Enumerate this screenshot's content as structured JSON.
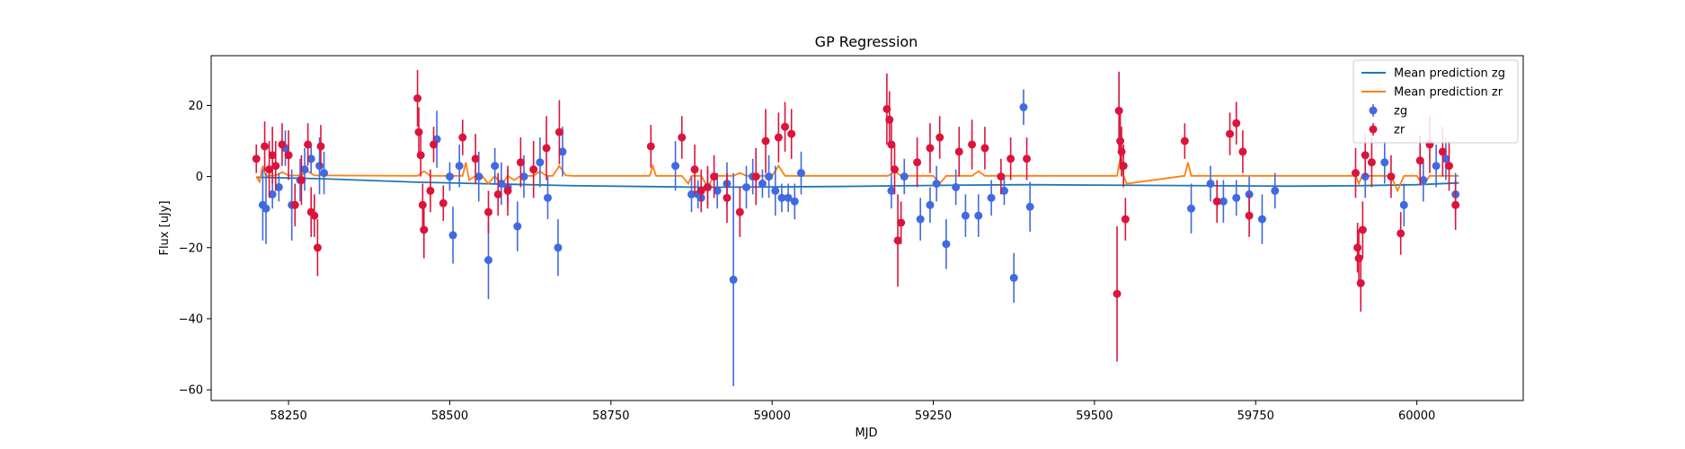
{
  "chart_data": {
    "type": "scatter",
    "title": "GP Regression",
    "xlabel": "MJD",
    "ylabel": "Flux [uJy]",
    "xlim": [
      58130,
      60165
    ],
    "ylim": [
      -63,
      34
    ],
    "xticks": [
      58250,
      58500,
      58750,
      59000,
      59250,
      59500,
      59750,
      60000
    ],
    "yticks": [
      -60,
      -40,
      -20,
      0,
      20
    ],
    "grid": false,
    "legend_position": "top-right",
    "legend": [
      {
        "label": "Mean prediction zg",
        "kind": "line",
        "color": "#1f77b4"
      },
      {
        "label": "Mean prediction zr",
        "kind": "line",
        "color": "#ff7f0e"
      },
      {
        "label": "zg",
        "kind": "errorbar",
        "color": "#4169e1"
      },
      {
        "label": "zr",
        "kind": "errorbar",
        "color": "#dc143c"
      }
    ],
    "lines": [
      {
        "name": "Mean prediction zg",
        "color": "#1f77b4",
        "x": [
          58200,
          58300,
          58450,
          58600,
          58700,
          58800,
          58900,
          59000,
          59100,
          59200,
          59300,
          59400,
          59500,
          59600,
          59700,
          59800,
          59900,
          60000,
          60065
        ],
        "y": [
          -0.2,
          -0.6,
          -1.6,
          -2.2,
          -2.6,
          -2.8,
          -3.0,
          -2.9,
          -2.8,
          -2.6,
          -2.4,
          -2.3,
          -2.4,
          -2.5,
          -2.6,
          -2.7,
          -2.6,
          -2.3,
          -1.8
        ]
      },
      {
        "name": "Mean prediction zr",
        "color": "#ff7f0e",
        "x": [
          58200,
          58205,
          58210,
          58215,
          58220,
          58230,
          58240,
          58250,
          58260,
          58270,
          58280,
          58290,
          58300,
          58310,
          58450,
          58460,
          58470,
          58480,
          58490,
          58500,
          58510,
          58520,
          58525,
          58530,
          58540,
          58550,
          58560,
          58570,
          58580,
          58590,
          58600,
          58610,
          58620,
          58630,
          58640,
          58650,
          58660,
          58670,
          58680,
          58690,
          58810,
          58815,
          58820,
          58860,
          58870,
          58875,
          58880,
          58890,
          58900,
          58910,
          58920,
          58930,
          58940,
          58950,
          58960,
          58970,
          58980,
          58990,
          59000,
          59010,
          59020,
          59030,
          59040,
          59180,
          59190,
          59200,
          59210,
          59220,
          59230,
          59240,
          59250,
          59260,
          59270,
          59280,
          59290,
          59300,
          59310,
          59320,
          59330,
          59340,
          59350,
          59360,
          59370,
          59380,
          59390,
          59400,
          59405,
          59535,
          59540,
          59545,
          59550,
          59640,
          59645,
          59650,
          59660,
          59670,
          59680,
          59690,
          59700,
          59710,
          59720,
          59730,
          59740,
          59750,
          59760,
          59770,
          59905,
          59910,
          59915,
          59920,
          59930,
          59940,
          59960,
          59970,
          59980,
          60000,
          60010,
          60020,
          60030,
          60040,
          60050,
          60065
        ],
        "y": [
          0,
          -1.5,
          3,
          0,
          0.3,
          0.3,
          1.2,
          0.3,
          0.3,
          0.3,
          1.5,
          0.3,
          0.3,
          0.3,
          0.2,
          1.5,
          0.2,
          0.2,
          0.2,
          0.2,
          0.2,
          0.2,
          4,
          -1,
          0.2,
          0.2,
          -2,
          0.2,
          -2.5,
          0.2,
          -1,
          0.2,
          0.2,
          0.2,
          1.5,
          0.2,
          0.2,
          3,
          0.3,
          0.2,
          0.2,
          3,
          0.2,
          0.2,
          -2,
          0.2,
          0.2,
          0.2,
          -3,
          0.2,
          0.2,
          0.2,
          0.2,
          1,
          0.2,
          0.2,
          0.2,
          0.2,
          0.2,
          3,
          0.2,
          0.2,
          0.2,
          0.2,
          1.5,
          0.2,
          0.2,
          0.2,
          0.2,
          0.2,
          0.2,
          -2,
          0.2,
          0.2,
          0.2,
          0.2,
          0.2,
          1.5,
          0.2,
          0.2,
          0.2,
          0.2,
          0.2,
          0.2,
          0.2,
          0.2,
          0.2,
          0.2,
          5,
          0.2,
          -2,
          0.2,
          4,
          0.2,
          0.2,
          0.2,
          0.2,
          0.2,
          0.2,
          0.2,
          0.2,
          0.2,
          0.2,
          0.2,
          0.2,
          0.2,
          0.2,
          -2,
          0.2,
          0.2,
          0.2,
          0.2,
          0.2,
          -4,
          0.2,
          0.2,
          -2.5,
          0.2,
          0.2,
          0.2,
          0.2,
          0.2
        ]
      }
    ],
    "series": [
      {
        "name": "zg",
        "color": "#4169e1",
        "x": [
          58210,
          58215,
          58225,
          58235,
          58245,
          58255,
          58268,
          58275,
          58285,
          58298,
          58305,
          58480,
          58500,
          58505,
          58515,
          58545,
          58560,
          58570,
          58580,
          58590,
          58605,
          58615,
          58640,
          58652,
          58668,
          58675,
          58850,
          58875,
          58885,
          58890,
          58900,
          58915,
          58930,
          58940,
          58960,
          58970,
          58985,
          58995,
          59005,
          59015,
          59025,
          59035,
          59045,
          59185,
          59205,
          59230,
          59245,
          59255,
          59270,
          59285,
          59300,
          59320,
          59340,
          59360,
          59375,
          59390,
          59400,
          59650,
          59680,
          59700,
          59720,
          59740,
          59760,
          59780,
          59920,
          59950,
          59980,
          60010,
          60030,
          60045,
          60060
        ],
        "y": [
          -8,
          -9,
          -5,
          -3,
          8,
          -8,
          -1,
          2,
          5,
          3,
          1,
          10.5,
          0,
          -16.5,
          3,
          0,
          -23.5,
          3,
          -2,
          -3,
          -14,
          0,
          4,
          -6,
          -20,
          7,
          3,
          -5,
          -5,
          -6,
          -3,
          -4,
          -2,
          -29,
          -3,
          0,
          -2,
          0,
          -4,
          -6,
          -6,
          -7,
          1,
          -4,
          0,
          -12,
          -8,
          -2,
          -19,
          -3,
          -11,
          -11,
          -6,
          -4,
          -28.5,
          19.5,
          -8.5,
          -9,
          -2,
          -7,
          -6,
          -5,
          -12,
          -4,
          0,
          4,
          -8,
          -1,
          3,
          5,
          -5
        ],
        "err": [
          10,
          10,
          4,
          4,
          5,
          10,
          6,
          6,
          4,
          8,
          6,
          8,
          4,
          8,
          6,
          7,
          11,
          5,
          6,
          5,
          7,
          6,
          7,
          6,
          8,
          7,
          7,
          5,
          4,
          4,
          5,
          5,
          6,
          30,
          6,
          5,
          4,
          6,
          7,
          4,
          4,
          5,
          6,
          5,
          5,
          6,
          5,
          5,
          7,
          5,
          6,
          6,
          5,
          4,
          7,
          5,
          7,
          7,
          5,
          6,
          5,
          5,
          7,
          5,
          6,
          6,
          6,
          6,
          6,
          6,
          6
        ]
      },
      {
        "name": "zr",
        "color": "#dc143c",
        "x": [
          58200,
          58213,
          58220,
          58225,
          58230,
          58240,
          58250,
          58260,
          58270,
          58280,
          58285,
          58290,
          58295,
          58300,
          58450,
          58452,
          58455,
          58458,
          58460,
          58470,
          58475,
          58490,
          58520,
          58540,
          58560,
          58575,
          58590,
          58610,
          58630,
          58650,
          58670,
          58812,
          58860,
          58880,
          58890,
          58900,
          58910,
          58930,
          58950,
          58975,
          58990,
          59010,
          59020,
          59030,
          59178,
          59182,
          59185,
          59190,
          59195,
          59200,
          59225,
          59245,
          59260,
          59290,
          59310,
          59330,
          59355,
          59370,
          59395,
          59535,
          59538,
          59540,
          59542,
          59545,
          59548,
          59640,
          59690,
          59710,
          59720,
          59730,
          59740,
          59905,
          59908,
          59910,
          59913,
          59916,
          59920,
          59930,
          59960,
          59975,
          60005,
          60020,
          60040,
          60050,
          60060
        ],
        "y": [
          5,
          8.5,
          2,
          6,
          3,
          9,
          6,
          -8,
          -1,
          9,
          -10,
          -11,
          -20,
          8.5,
          22,
          12.5,
          6,
          -8,
          -15,
          -4,
          9,
          -7.5,
          11,
          5,
          -10,
          -5,
          -4,
          4,
          2,
          8,
          12.5,
          8.5,
          11,
          2,
          -4,
          -3,
          0,
          -6,
          -10,
          0,
          10,
          11,
          14,
          12,
          19,
          16,
          9,
          2,
          -18,
          -13,
          4,
          8,
          11,
          7,
          9,
          8,
          0,
          5,
          5,
          -33,
          18.5,
          10,
          7,
          3,
          -12,
          10,
          -7,
          12,
          15,
          7,
          -11,
          1,
          -20,
          -23,
          -30,
          -15,
          6,
          4,
          0,
          -16,
          4.5,
          9,
          7,
          3,
          -8
        ],
        "err": [
          4,
          7,
          8,
          8,
          7,
          6,
          7,
          6,
          7,
          6,
          7,
          6,
          8,
          6,
          8,
          7,
          6,
          6,
          8,
          6,
          5,
          5,
          5,
          7,
          6,
          6,
          7,
          7,
          8,
          9,
          9,
          6,
          6,
          7,
          6,
          6,
          6,
          7,
          7,
          8,
          9,
          7,
          7,
          7,
          10,
          8,
          7,
          7,
          13,
          6,
          7,
          7,
          6,
          7,
          7,
          6,
          5,
          6,
          6,
          19,
          11,
          8,
          7,
          6,
          6,
          5,
          6,
          6,
          6,
          6,
          6,
          7,
          7,
          8,
          8,
          8,
          6,
          7,
          6,
          6,
          7,
          8,
          7,
          7,
          7
        ]
      }
    ]
  }
}
